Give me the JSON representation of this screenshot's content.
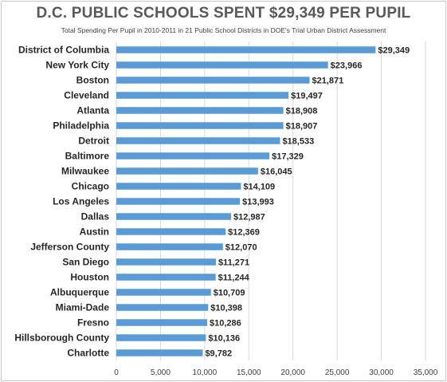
{
  "chart_data": {
    "type": "bar",
    "orientation": "horizontal",
    "title": "D.C. PUBLIC SCHOOLS SPENT $29,349 PER PUPIL",
    "subtitle": "Total Spending Per Pupil in 2010-2011 in 21 Public School Districts in DOE's Trial Urban District Assessment",
    "categories": [
      "District of Columbia",
      "New York City",
      "Boston",
      "Cleveland",
      "Atlanta",
      "Philadelphia",
      "Detroit",
      "Baltimore",
      "Milwaukee",
      "Chicago",
      "Los Angeles",
      "Dallas",
      "Austin",
      "Jefferson County",
      "San Diego",
      "Houston",
      "Albuquerque",
      "Miami-Dade",
      "Fresno",
      "Hillsborough County",
      "Charlotte"
    ],
    "values": [
      29349,
      23966,
      21871,
      19497,
      18908,
      18907,
      18533,
      17329,
      16045,
      14109,
      13993,
      12987,
      12369,
      12070,
      11271,
      11244,
      10709,
      10398,
      10286,
      10136,
      9782
    ],
    "value_labels": [
      "$29,349",
      "$23,966",
      "$21,871",
      "$19,497",
      "$18,908",
      "$18,907",
      "$18,533",
      "$17,329",
      "$16,045",
      "$14,109",
      "$13,993",
      "$12,987",
      "$12,369",
      "$12,070",
      "$11,271",
      "$11,244",
      "$10,709",
      "$10,398",
      "$10,286",
      "$10,136",
      "$9,782"
    ],
    "xlim": [
      0,
      35000
    ],
    "xticks": [
      "0",
      "5,000",
      "10,000",
      "15,000",
      "20,000",
      "25,000",
      "30,000",
      "35,000"
    ],
    "xtick_values": [
      0,
      5000,
      10000,
      15000,
      20000,
      25000,
      30000,
      35000
    ],
    "grid": true,
    "bar_color": "#5b9bd5",
    "grid_color": "#d9d9d9"
  }
}
